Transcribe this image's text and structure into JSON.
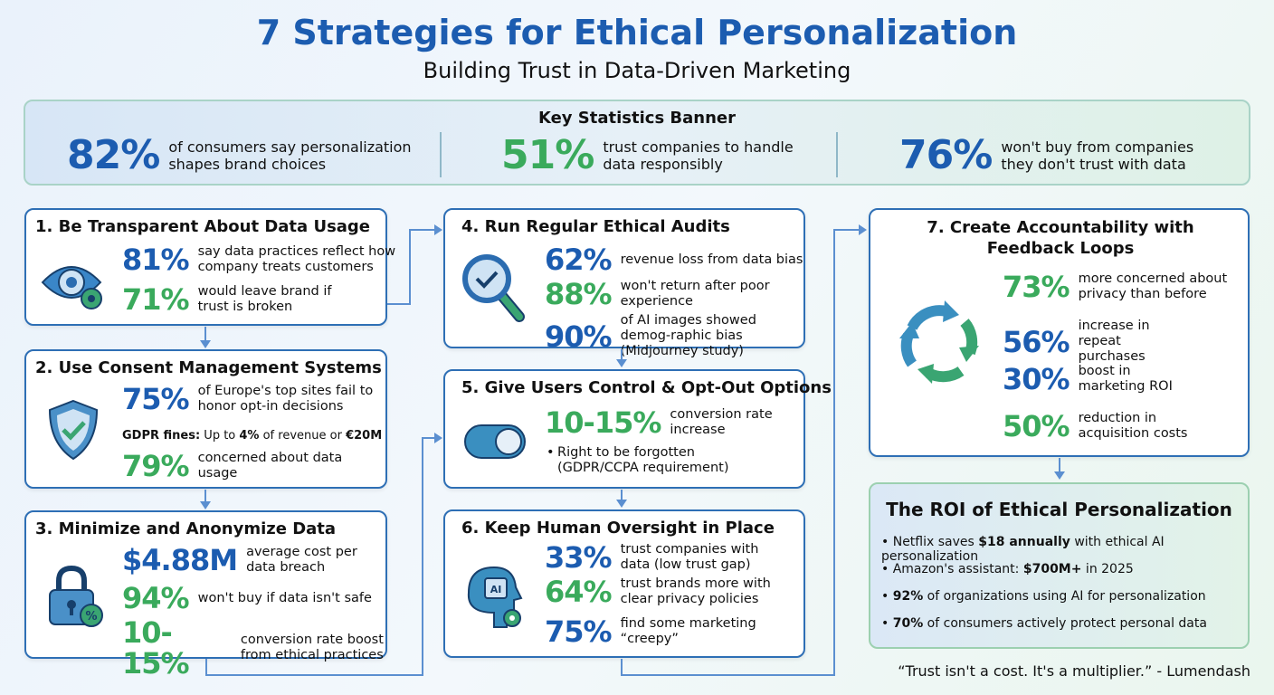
{
  "header": {
    "title": "7 Strategies for Ethical Personalization",
    "subtitle": "Building Trust in Data-Driven Marketing"
  },
  "banner": {
    "title": "Key Statistics Banner",
    "stats": [
      {
        "value": "82%",
        "text": "of consumers say personalization shapes brand choices"
      },
      {
        "value": "51%",
        "text": "trust companies to handle data responsibly"
      },
      {
        "value": "76%",
        "text": "won't buy from companies they don't trust with data"
      }
    ]
  },
  "strategies": [
    {
      "title": "1. Be Transparent About Data Usage",
      "icon": "eye-icon",
      "stats": [
        {
          "value": "81%",
          "text": "say data practices reflect how company treats customers"
        },
        {
          "value": "71%",
          "text": "would leave brand if trust is broken"
        }
      ]
    },
    {
      "title": "2. Use Consent Management Systems",
      "icon": "shield-check-icon",
      "stats": [
        {
          "value": "75%",
          "text": "of Europe's top sites fail to honor opt-in decisions"
        },
        {
          "value": "79%",
          "text": "concerned about data usage"
        }
      ],
      "note": {
        "label": "GDPR fines:",
        "pre": " Up to ",
        "b1": "4%",
        "mid": " of revenue or ",
        "b2": "€20M"
      }
    },
    {
      "title": "3. Minimize and Anonymize Data",
      "icon": "lock-percent-icon",
      "stats": [
        {
          "value": "$4.88M",
          "text": "average cost per data breach"
        },
        {
          "value": "94%",
          "text": "won't buy if data isn't safe"
        },
        {
          "value": "10-15%",
          "text": "conversion rate boost from ethical practices"
        }
      ]
    },
    {
      "title": "4. Run Regular Ethical Audits",
      "icon": "magnifier-check-icon",
      "stats": [
        {
          "value": "62%",
          "text": "revenue loss from data bias"
        },
        {
          "value": "88%",
          "text": "won't return after poor experience"
        },
        {
          "value": "90%",
          "text": "of AI images showed demog-raphic bias (Midjourney study)"
        }
      ]
    },
    {
      "title": "5. Give Users Control & Opt-Out Options",
      "icon": "toggle-icon",
      "stats": [
        {
          "value": "10-15%",
          "text": "conversion rate increase"
        }
      ],
      "bullet": "Right to be forgotten (GDPR/CCPA requirement)"
    },
    {
      "title": "6. Keep Human Oversight in Place",
      "icon": "human-ai-icon",
      "stats": [
        {
          "value": "33%",
          "text": "trust companies with data (low trust gap)"
        },
        {
          "value": "64%",
          "text": "trust brands more with clear privacy policies"
        },
        {
          "value": "75%",
          "text": "find some marketing “creepy”"
        }
      ]
    },
    {
      "title": "7. Create Accountability with Feedback Loops",
      "icon": "cycle-arrows-icon",
      "stats": [
        {
          "value": "73%",
          "text": "more concerned about privacy than before"
        },
        {
          "value": "56%",
          "text": "increase in repeat purchases"
        },
        {
          "value": "30%",
          "text": "boost in marketing ROI"
        },
        {
          "value": "50%",
          "text": "reduction in acquisition costs"
        }
      ]
    }
  ],
  "roi": {
    "title": "The ROI of Ethical Personalization",
    "items": [
      {
        "pre": "Netflix saves ",
        "bold": "$18 annually",
        "post": " with ethical AI personalization"
      },
      {
        "pre": "Amazon's assistant: ",
        "bold": "$700M+",
        "post": " in 2025"
      },
      {
        "pre": "",
        "bold": "92%",
        "post": " of organizations using AI for personalization"
      },
      {
        "pre": "",
        "bold": "70%",
        "post": " of consumers actively protect personal data"
      }
    ]
  },
  "quote": "“Trust isn't a cost. It's a multiplier.” - Lumendash",
  "colors": {
    "blue": "#1c5cb0",
    "green": "#3aaa5c",
    "connector": "#5b8fd0"
  }
}
